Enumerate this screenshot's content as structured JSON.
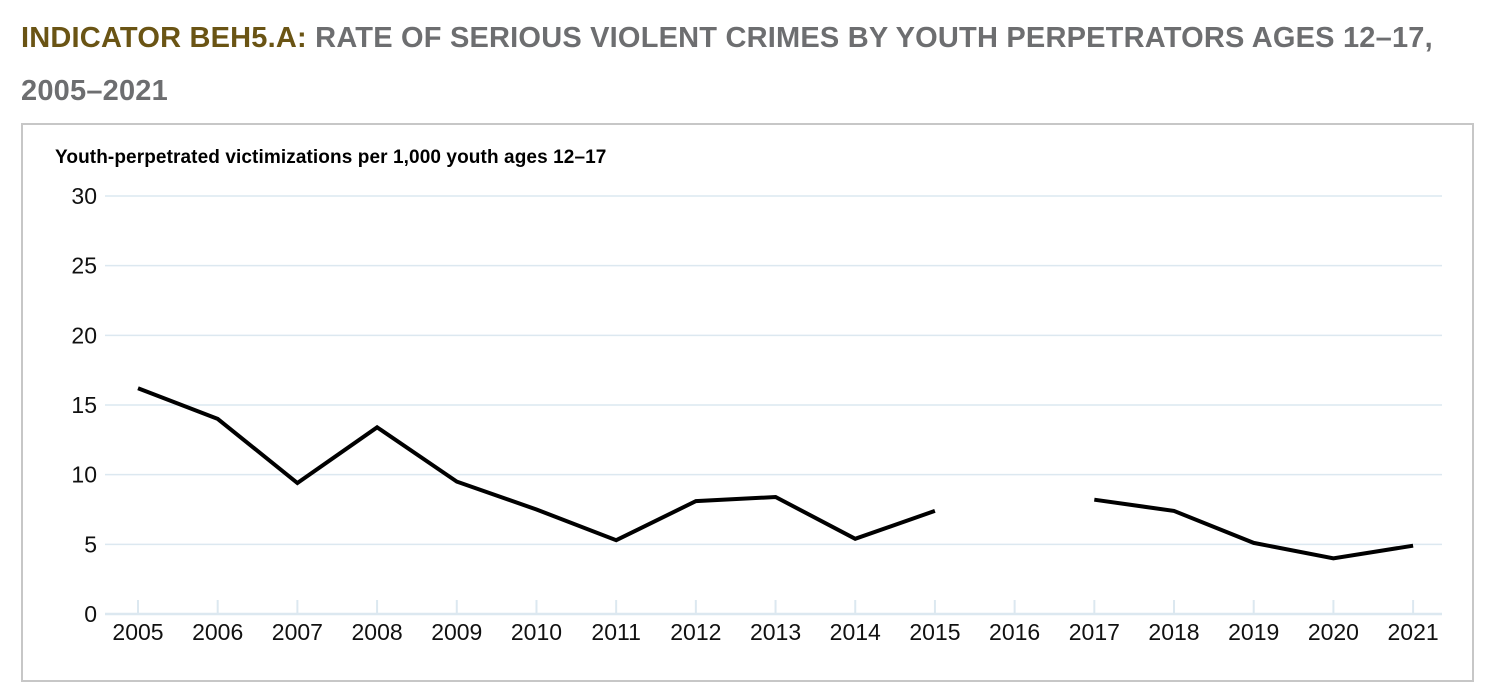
{
  "header": {
    "indicator_label": "INDICATOR BEH5.A:",
    "title_rest": "RATE OF SERIOUS VIOLENT CRIMES BY YOUTH PERPETRATORS AGES 12–17,",
    "title_line2": "2005–2021"
  },
  "colors": {
    "indicator": "#6a5414",
    "title_gray": "#6d6e70",
    "gridline": "#dce8f0",
    "axis_text": "#111111",
    "line": "#000000",
    "panel_border": "#c7c7c7"
  },
  "chart_data": {
    "type": "line",
    "title": "Youth-perpetrated victimizations per 1,000 youth ages 12–17",
    "xlabel": "",
    "ylabel": "Youth-perpetrated victimizations per 1,000 youth ages 12–17",
    "x": [
      "2005",
      "2006",
      "2007",
      "2008",
      "2009",
      "2010",
      "2011",
      "2012",
      "2013",
      "2014",
      "2015",
      "2016",
      "2017",
      "2018",
      "2019",
      "2020",
      "2021"
    ],
    "values": [
      16.2,
      14.0,
      9.4,
      13.4,
      9.5,
      7.5,
      5.3,
      8.1,
      8.4,
      5.4,
      7.4,
      null,
      8.2,
      7.4,
      5.1,
      4.0,
      4.9
    ],
    "ylim": [
      0,
      30
    ],
    "yticks": [
      0,
      5,
      10,
      15,
      20,
      25,
      30
    ],
    "grid": true,
    "legend": "none"
  }
}
